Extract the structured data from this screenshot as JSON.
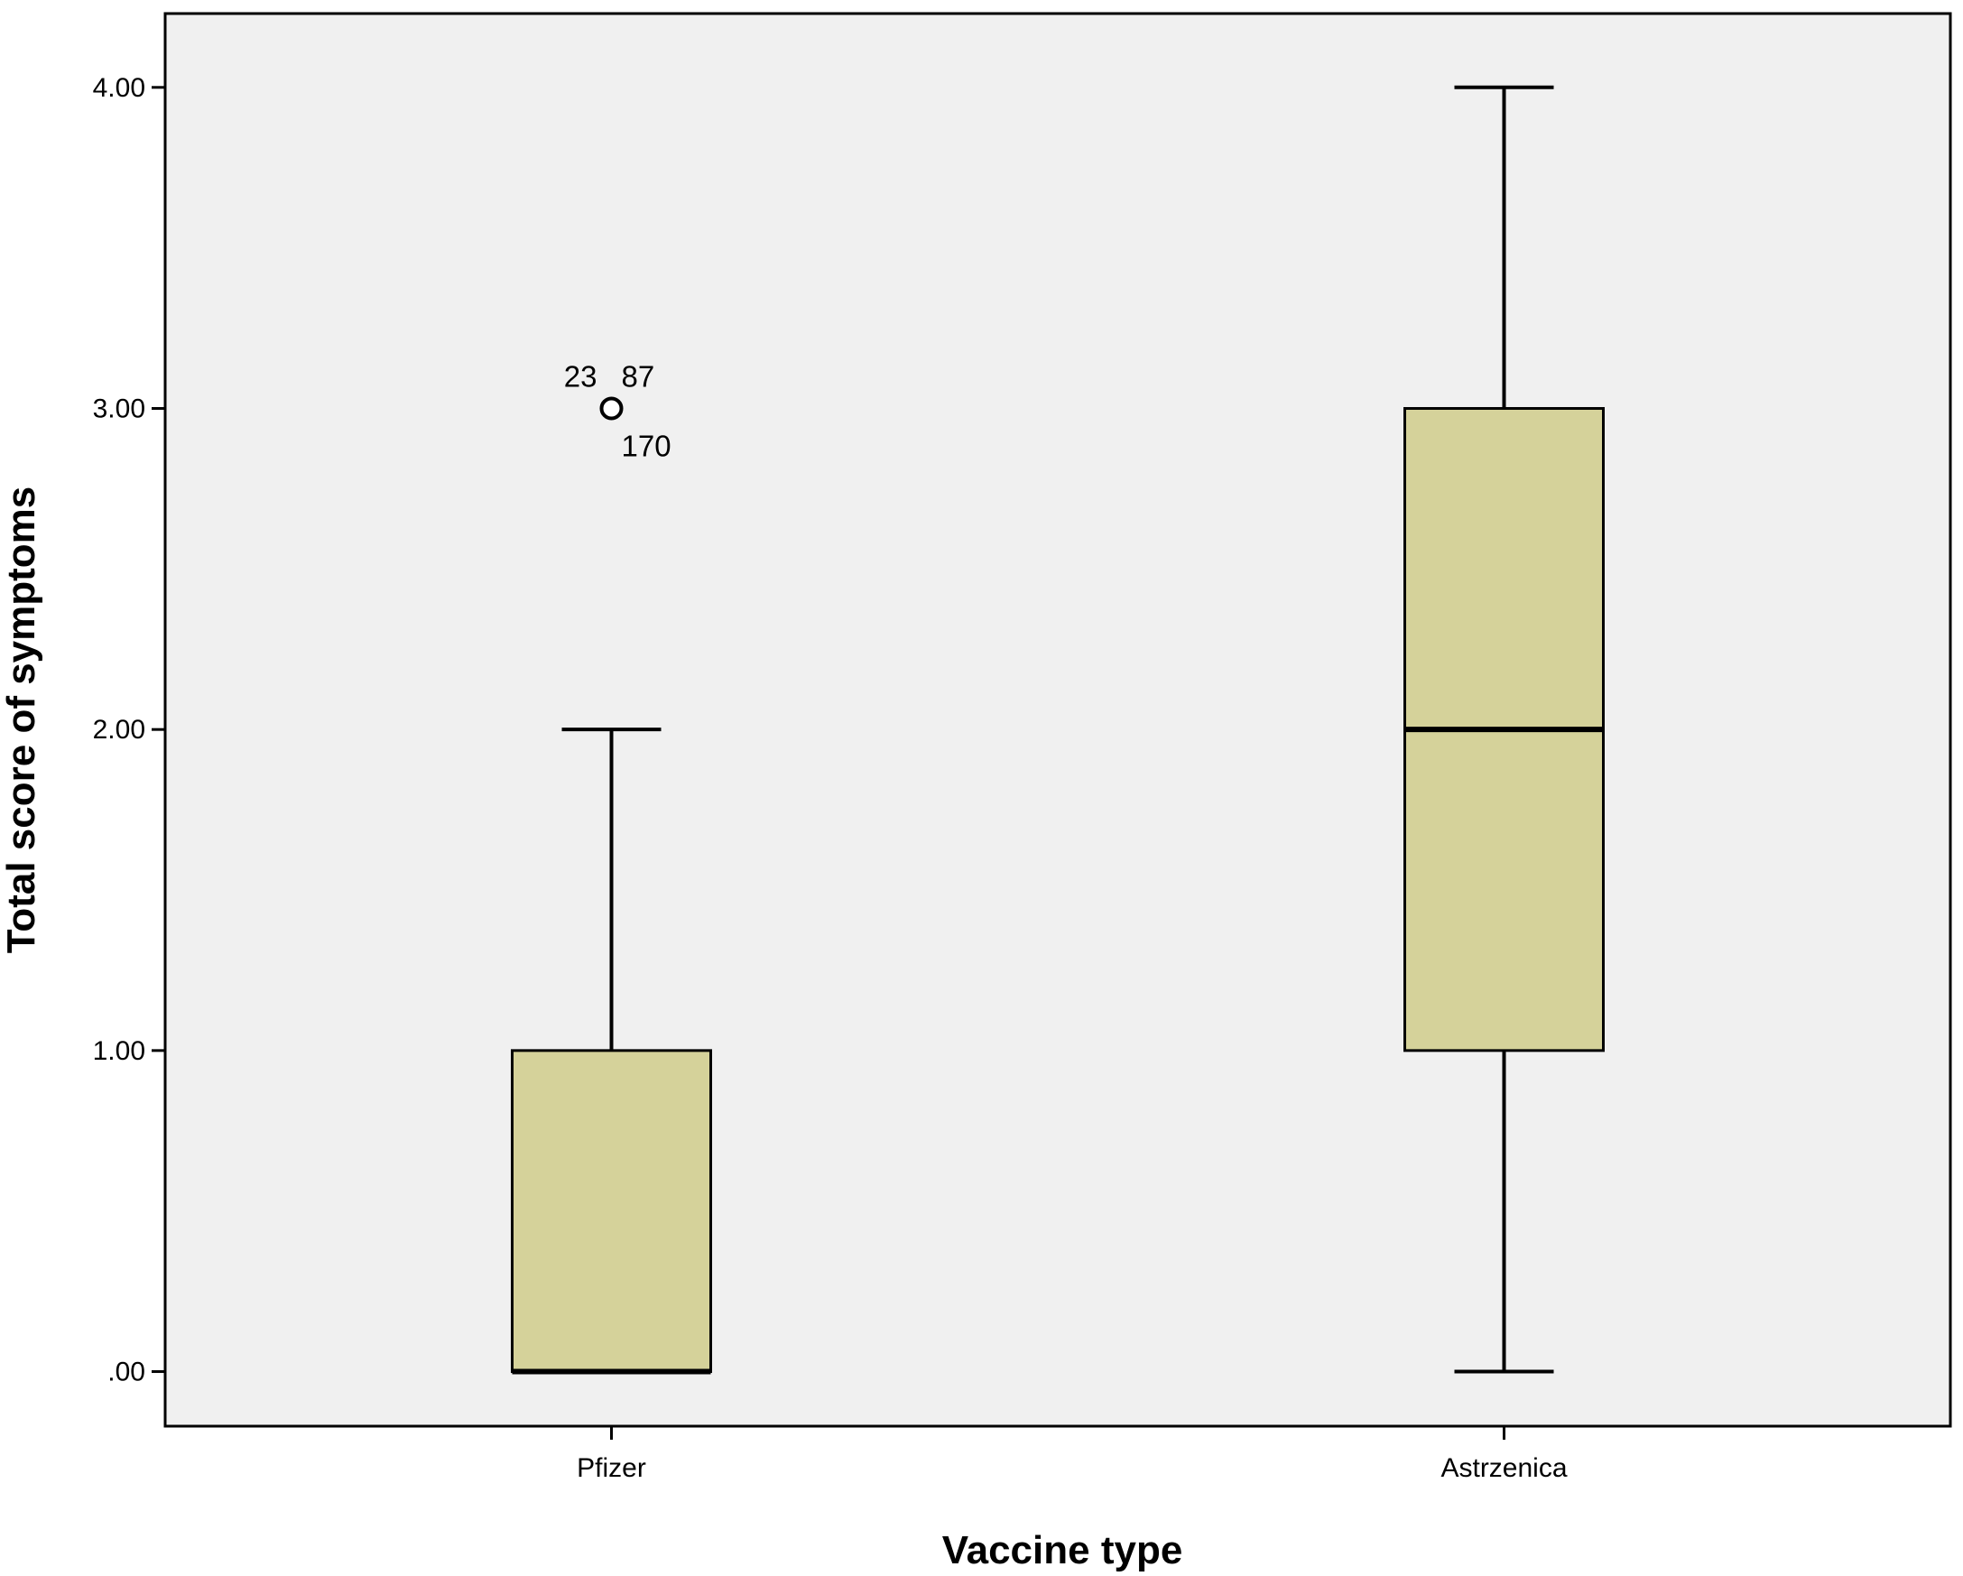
{
  "chart_data": {
    "type": "boxplot",
    "title": "",
    "xlabel": "Vaccine type",
    "ylabel": "Total score of symptoms",
    "ylim": [
      -0.17,
      4.23
    ],
    "yticks": [
      0,
      1,
      2,
      3,
      4
    ],
    "ytick_labels": [
      ".00",
      "1.00",
      "2.00",
      "3.00",
      "4.00"
    ],
    "grid": false,
    "colors": {
      "plot_background": "#f0f0f0",
      "box_fill": "#d5d29a",
      "line": "#000000"
    },
    "categories": [
      "Pfizer",
      "Astrzenica"
    ],
    "boxes": [
      {
        "category": "Pfizer",
        "whisker_low": 0,
        "q1": 0,
        "median": 0,
        "q3": 1,
        "whisker_high": 2,
        "outliers": [
          {
            "value": 3,
            "labels": [
              "23",
              "87",
              "170"
            ]
          }
        ]
      },
      {
        "category": "Astrzenica",
        "whisker_low": 0,
        "q1": 1,
        "median": 2,
        "q3": 3,
        "whisker_high": 4,
        "outliers": []
      }
    ]
  }
}
